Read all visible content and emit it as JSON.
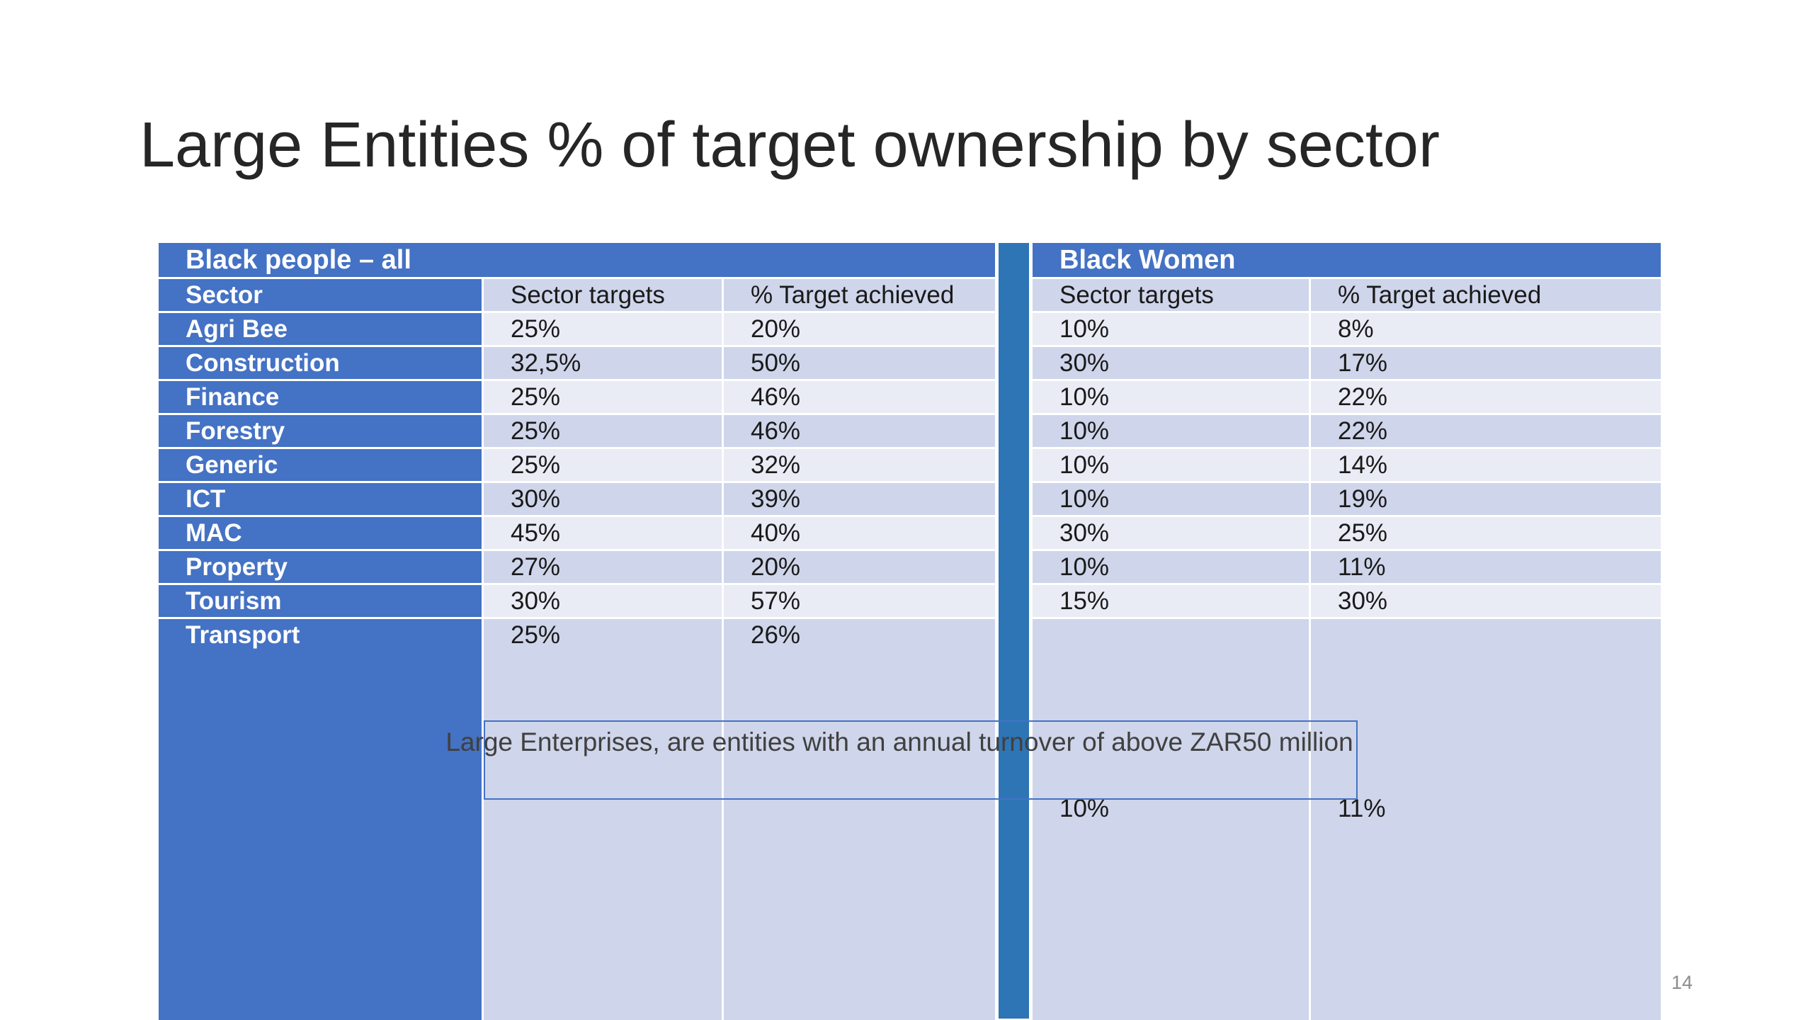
{
  "slide": {
    "title": "Large Entities % of target ownership by sector",
    "page_number": "14",
    "note": "Large Enterprises, are entities with an annual turnover of above ZAR50 million"
  },
  "left_table": {
    "group_title": "Black people – all",
    "headers": [
      "Sector",
      "Sector targets",
      "% Target achieved"
    ],
    "rows": [
      {
        "sector": "Agri Bee",
        "target": "25%",
        "achieved": "20%"
      },
      {
        "sector": "Construction",
        "target": "32,5%",
        "achieved": "50%"
      },
      {
        "sector": "Finance",
        "target": "25%",
        "achieved": "46%"
      },
      {
        "sector": "Forestry",
        "target": "25%",
        "achieved": "46%"
      },
      {
        "sector": "Generic",
        "target": "25%",
        "achieved": "32%"
      },
      {
        "sector": "ICT",
        "target": "30%",
        "achieved": "39%"
      },
      {
        "sector": "MAC",
        "target": "45%",
        "achieved": "40%"
      },
      {
        "sector": "Property",
        "target": "27%",
        "achieved": "20%"
      },
      {
        "sector": "Tourism",
        "target": "30%",
        "achieved": "57%"
      },
      {
        "sector": "Transport",
        "target": "25%",
        "achieved": "26%"
      }
    ]
  },
  "right_table": {
    "group_title": "Black Women",
    "headers": [
      "Sector targets",
      "% Target achieved"
    ],
    "rows": [
      {
        "target": "10%",
        "achieved": "8%"
      },
      {
        "target": "30%",
        "achieved": "17%"
      },
      {
        "target": "10%",
        "achieved": "22%"
      },
      {
        "target": "10%",
        "achieved": "22%"
      },
      {
        "target": "10%",
        "achieved": "14%"
      },
      {
        "target": "10%",
        "achieved": "19%"
      },
      {
        "target": "30%",
        "achieved": "25%"
      },
      {
        "target": "10%",
        "achieved": "11%"
      },
      {
        "target": "15%",
        "achieved": "30%"
      }
    ],
    "stray_row": {
      "target": "10%",
      "achieved": "11%"
    }
  },
  "colors": {
    "header_blue": "#4472c4",
    "divider_blue": "#2e75b6",
    "band_light": "#e9ebf5",
    "band_dark": "#cfd5ea"
  }
}
